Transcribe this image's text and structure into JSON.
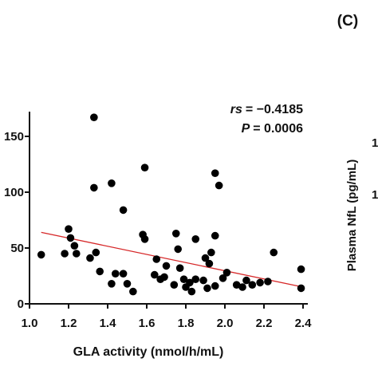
{
  "panel_label": "(C)",
  "chart_data": {
    "type": "scatter",
    "x_label": "GLA activity (nmol/h/mL)",
    "xlim": [
      1.0,
      2.42
    ],
    "ylim": [
      0,
      170
    ],
    "xticks": [
      {
        "value": 1,
        "label": "1.0"
      },
      1.2,
      1.4,
      1.6,
      1.8,
      {
        "value": 2,
        "label": "2.0"
      },
      2.2,
      2.4
    ],
    "yticks": [
      0,
      50,
      100,
      150
    ],
    "color": "#000000",
    "x": [
      1.06,
      1.2,
      1.21,
      1.18,
      1.23,
      1.24,
      1.33,
      1.33,
      1.31,
      1.34,
      1.36,
      1.42,
      1.42,
      1.44,
      1.48,
      1.48,
      1.5,
      1.53,
      1.59,
      1.58,
      1.59,
      1.65,
      1.64,
      1.67,
      1.69,
      1.7,
      1.74,
      1.75,
      1.76,
      1.77,
      1.79,
      1.8,
      1.82,
      1.83,
      1.85,
      1.85,
      1.9,
      1.92,
      1.89,
      1.91,
      1.95,
      1.97,
      1.95,
      1.93,
      1.95,
      1.99,
      2.01,
      2.06,
      2.09,
      2.11,
      2.14,
      2.18,
      2.22,
      2.25,
      2.39,
      2.39
    ],
    "values": [
      44,
      67,
      59,
      45,
      52,
      45,
      167,
      104,
      41,
      46,
      29,
      108,
      18,
      27,
      84,
      27,
      18,
      11,
      122,
      62,
      58,
      40,
      26,
      22,
      24,
      34,
      17,
      63,
      49,
      32,
      22,
      15,
      19,
      11,
      58,
      22,
      41,
      36,
      21,
      14,
      117,
      106,
      61,
      46,
      16,
      23,
      28,
      17,
      15,
      21,
      17,
      19,
      20,
      46,
      31,
      14
    ],
    "fit_line": {
      "x": [
        1.06,
        2.4
      ],
      "y": [
        64,
        15
      ],
      "color": "#d62728"
    },
    "annotations": [
      {
        "symbol": "rs",
        "text": "= −0.4185"
      },
      {
        "symbol": "P",
        "text": "= 0.0006"
      }
    ]
  },
  "neighbor_panel": {
    "y_label": "Plasma NfL (pg/mL)",
    "tick_fragments": [
      "1",
      "1"
    ]
  }
}
